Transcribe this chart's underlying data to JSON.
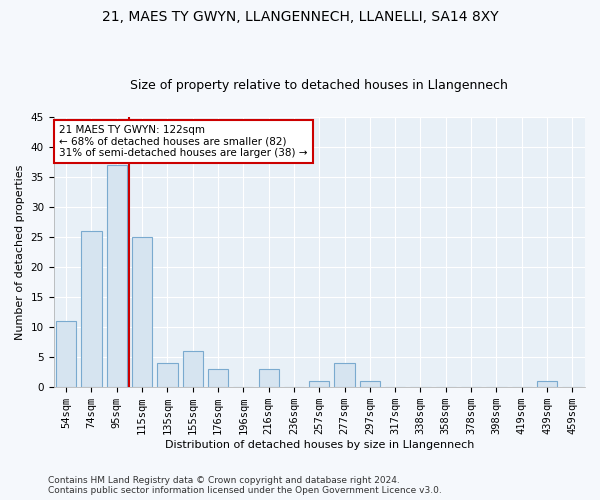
{
  "title1": "21, MAES TY GWYN, LLANGENNECH, LLANELLI, SA14 8XY",
  "title2": "Size of property relative to detached houses in Llangennech",
  "xlabel": "Distribution of detached houses by size in Llangennech",
  "ylabel": "Number of detached properties",
  "categories": [
    "54sqm",
    "74sqm",
    "95sqm",
    "115sqm",
    "135sqm",
    "155sqm",
    "176sqm",
    "196sqm",
    "216sqm",
    "236sqm",
    "257sqm",
    "277sqm",
    "297sqm",
    "317sqm",
    "338sqm",
    "358sqm",
    "378sqm",
    "398sqm",
    "419sqm",
    "439sqm",
    "459sqm"
  ],
  "values": [
    11,
    26,
    37,
    25,
    4,
    6,
    3,
    0,
    3,
    0,
    1,
    4,
    1,
    0,
    0,
    0,
    0,
    0,
    0,
    1,
    0
  ],
  "bar_color": "#d6e4f0",
  "bar_edgecolor": "#7aaacf",
  "bar_linewidth": 0.8,
  "vline_x": 2.5,
  "vline_color": "#cc0000",
  "annotation_line1": "21 MAES TY GWYN: 122sqm",
  "annotation_line2": "← 68% of detached houses are smaller (82)",
  "annotation_line3": "31% of semi-detached houses are larger (38) →",
  "annotation_box_color": "white",
  "annotation_box_edgecolor": "#cc0000",
  "ylim": [
    0,
    45
  ],
  "yticks": [
    0,
    5,
    10,
    15,
    20,
    25,
    30,
    35,
    40,
    45
  ],
  "footnote": "Contains HM Land Registry data © Crown copyright and database right 2024.\nContains public sector information licensed under the Open Government Licence v3.0.",
  "plot_bg_color": "#e8f0f7",
  "fig_bg_color": "#f5f8fc",
  "grid_color": "#ffffff",
  "title_fontsize": 10,
  "subtitle_fontsize": 9,
  "axis_label_fontsize": 8,
  "tick_fontsize": 7.5,
  "annotation_fontsize": 7.5,
  "footnote_fontsize": 6.5
}
